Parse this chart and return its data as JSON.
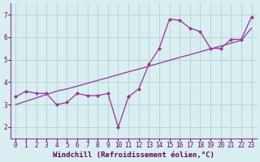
{
  "x": [
    0,
    1,
    2,
    3,
    4,
    5,
    6,
    7,
    8,
    9,
    10,
    11,
    12,
    13,
    14,
    15,
    16,
    17,
    18,
    19,
    20,
    21,
    22,
    23
  ],
  "y_data": [
    3.35,
    3.6,
    3.5,
    3.5,
    3.0,
    3.1,
    3.5,
    3.4,
    3.4,
    3.5,
    2.0,
    3.35,
    3.7,
    4.8,
    5.5,
    6.8,
    6.75,
    6.4,
    6.25,
    5.5,
    5.5,
    5.9,
    5.9,
    6.9
  ],
  "y_trend": [
    3.0,
    3.15,
    3.3,
    3.45,
    3.6,
    3.7,
    3.82,
    3.95,
    4.08,
    4.2,
    4.33,
    4.46,
    4.58,
    4.71,
    4.84,
    4.97,
    5.1,
    5.22,
    5.35,
    5.48,
    5.6,
    5.73,
    5.86,
    6.4
  ],
  "line_color": "#993399",
  "bg_color": "#d8eef0",
  "grid_color": "#aacccc",
  "xlabel": "Windchill (Refroidissement éolien,°C)",
  "xlabel_color": "#660066",
  "tick_color": "#660066",
  "spine_color": "#993399",
  "ylim": [
    1.5,
    7.5
  ],
  "xlim": [
    -0.5,
    23.5
  ],
  "yticks": [
    2,
    3,
    4,
    5,
    6,
    7
  ],
  "xticks": [
    0,
    1,
    2,
    3,
    4,
    5,
    6,
    7,
    8,
    9,
    10,
    11,
    12,
    13,
    14,
    15,
    16,
    17,
    18,
    19,
    20,
    21,
    22,
    23
  ],
  "tick_fontsize": 5.5,
  "xlabel_fontsize": 6.5,
  "marker": "D",
  "marker_size": 2.0,
  "linewidth": 0.9,
  "trend_linewidth": 0.9
}
